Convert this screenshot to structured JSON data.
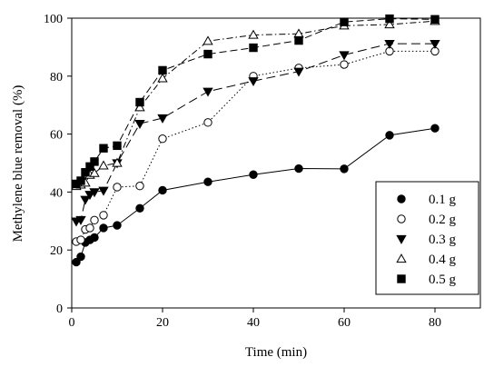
{
  "chart_data": {
    "type": "scatter",
    "xlabel": "Time (min)",
    "ylabel": "Methylene blue removal (%)",
    "xlim": [
      0,
      90
    ],
    "ylim": [
      0,
      100
    ],
    "x_ticks": [
      0,
      20,
      40,
      60,
      80
    ],
    "y_ticks": [
      0,
      20,
      40,
      60,
      80,
      100
    ],
    "x_tick_labels": [
      "0",
      "20",
      "40",
      "60",
      "80"
    ],
    "y_tick_labels": [
      "0",
      "20",
      "40",
      "60",
      "80",
      "100"
    ],
    "grid": false,
    "legend_position": "bottom-right",
    "series": [
      {
        "name": "0.1 g",
        "marker": "filled-circle",
        "line_style": "solid",
        "x": [
          1,
          2,
          3,
          4,
          5,
          7,
          10,
          15,
          20,
          30,
          40,
          50,
          60,
          70,
          80
        ],
        "y": [
          15.8,
          17.7,
          22.6,
          23.5,
          24.3,
          27.6,
          28.5,
          34.4,
          40.6,
          43.5,
          46.0,
          48.1,
          48.0,
          59.6,
          62.0
        ]
      },
      {
        "name": "0.2 g",
        "marker": "open-circle",
        "line_style": "dotted",
        "x": [
          1,
          2,
          3,
          4,
          5,
          7,
          10,
          15,
          20,
          30,
          40,
          50,
          60,
          70,
          80
        ],
        "y": [
          22.9,
          23.5,
          27.1,
          27.6,
          30.3,
          32.0,
          41.7,
          42.1,
          58.4,
          64.0,
          80.0,
          82.8,
          84.0,
          88.6,
          88.6
        ]
      },
      {
        "name": "0.3 g",
        "marker": "filled-triangle-down",
        "line_style": "long-dash",
        "x": [
          1,
          2,
          3,
          4,
          5,
          7,
          10,
          15,
          20,
          30,
          40,
          50,
          60,
          70,
          80
        ],
        "y": [
          29.9,
          30.4,
          37.4,
          39.1,
          40.0,
          40.5,
          50.0,
          63.6,
          65.5,
          74.7,
          78.3,
          81.6,
          87.3,
          91.2,
          91.2
        ]
      },
      {
        "name": "0.4 g",
        "marker": "open-triangle-up",
        "line_style": "dash-dot",
        "x": [
          1,
          2,
          3,
          4,
          5,
          7,
          10,
          15,
          20,
          30,
          40,
          50,
          60,
          70,
          80
        ],
        "y": [
          42.0,
          42.5,
          43.2,
          45.9,
          46.5,
          49.1,
          50.0,
          69.2,
          79.2,
          92.1,
          94.2,
          94.6,
          97.4,
          97.8,
          99.0
        ]
      },
      {
        "name": "0.5 g",
        "marker": "filled-square",
        "line_style": "dash",
        "x": [
          1,
          2,
          3,
          4,
          5,
          7,
          10,
          15,
          20,
          30,
          40,
          50,
          60,
          70,
          80
        ],
        "y": [
          42.8,
          43.9,
          46.8,
          48.8,
          50.5,
          55.1,
          56.0,
          71.0,
          82.0,
          87.6,
          89.8,
          92.3,
          98.7,
          99.8,
          99.6
        ]
      }
    ]
  }
}
